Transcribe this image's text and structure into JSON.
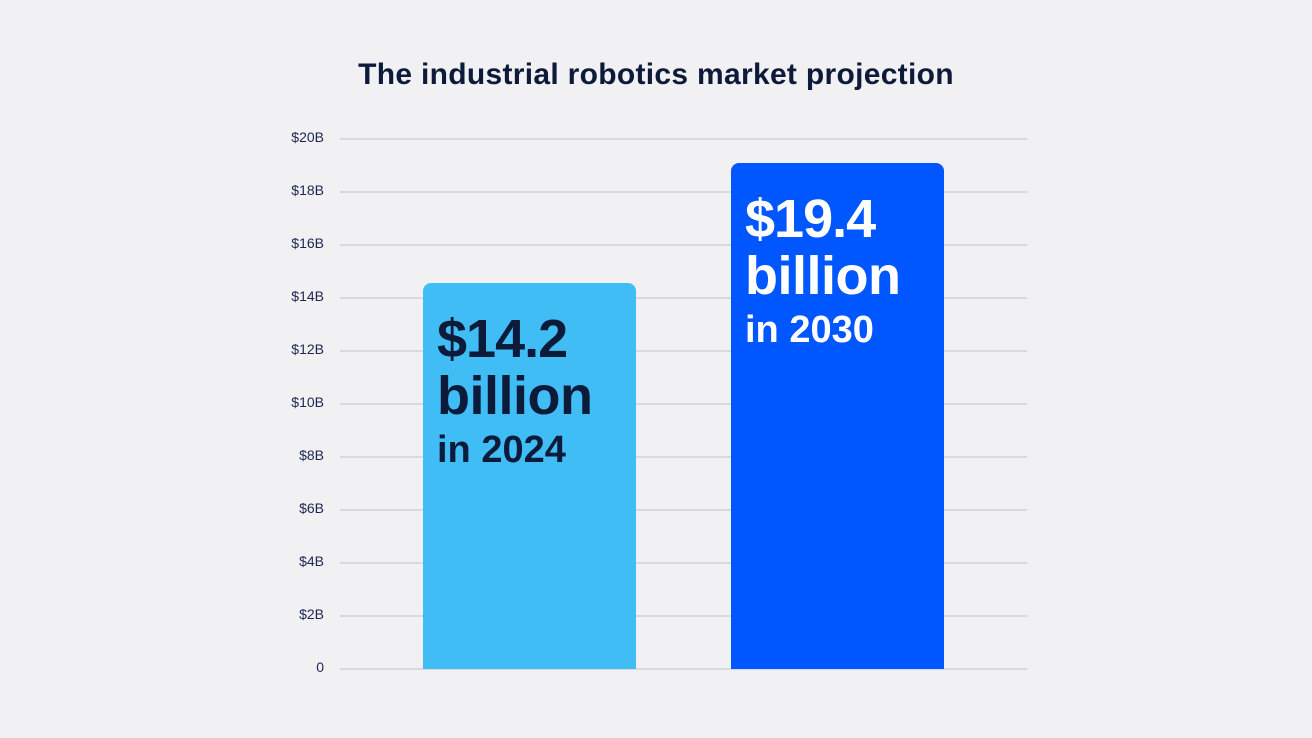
{
  "chart_data": {
    "type": "bar",
    "title": "The industrial robotics market projection",
    "categories": [
      "2024",
      "2030"
    ],
    "values": [
      14.2,
      19.4
    ],
    "unit": "billion USD",
    "xlabel": "",
    "ylabel": "",
    "ylim": [
      0,
      20
    ],
    "yticks": [
      "0",
      "$2B",
      "$4B",
      "$6B",
      "$8B",
      "$10B",
      "$12B",
      "$14B",
      "$16B",
      "$18B",
      "$20B"
    ],
    "grid": true,
    "legend": null,
    "data_labels": [
      {
        "value": "$14.2",
        "unit": "billion",
        "year": "in 2024"
      },
      {
        "value": "$19.4",
        "unit": "billion",
        "year": "in 2030"
      }
    ],
    "colors": [
      "#41bdf6",
      "#0157ff"
    ],
    "label_colors": [
      "#0c1b3a",
      "#ffffff"
    ]
  }
}
